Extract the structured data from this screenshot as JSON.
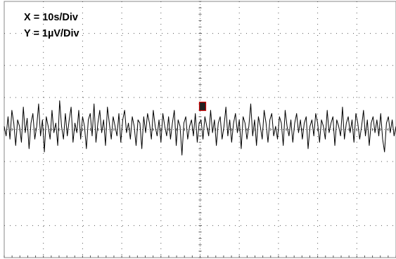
{
  "scale": {
    "x_label": "X = 10s/Div",
    "y_label": "Y = 1µV/Div"
  },
  "colors": {
    "trace": "#000000",
    "grid": "#555555",
    "marker_edge": "#cc0000",
    "marker_fill": "#222222"
  },
  "chart_data": {
    "type": "line",
    "title": "",
    "xlabel": "",
    "ylabel": "",
    "grid": "dotted",
    "divisions": {
      "x": 10,
      "y": 8
    },
    "xlim": [
      0,
      100
    ],
    "ylim": [
      -4,
      4
    ],
    "x_unit": "s",
    "y_unit": "µV",
    "series": [
      {
        "values": [
          0.1,
          -0.2,
          0.4,
          -0.3,
          0.6,
          0.2,
          -0.5,
          0.3,
          0.1,
          -0.4,
          0.7,
          -0.1,
          0.35,
          -0.6,
          0.2,
          0.5,
          -0.3,
          0.1,
          0.8,
          -0.2,
          0.3,
          -0.7,
          0.4,
          0.1,
          -0.3,
          0.6,
          -0.1,
          0.2,
          -0.5,
          0.9,
          0.1,
          -0.3,
          0.5,
          -0.2,
          0.3,
          0.7,
          -0.4,
          0.2,
          -0.1,
          0.6,
          -0.3,
          0.4,
          0.1,
          -0.6,
          0.3,
          0.5,
          -0.2,
          0.8,
          -0.4,
          0.2,
          0.6,
          -0.1,
          0.3,
          -0.5,
          0.7,
          0.2,
          -0.3,
          0.4,
          0.1,
          -0.2,
          0.5,
          -0.4,
          0.3,
          0.6,
          -0.1,
          0.2,
          -0.3,
          0.4,
          0.1,
          -0.5,
          0.3,
          0.2,
          -0.6,
          0.4,
          -0.1,
          0.5,
          0.2,
          -0.3,
          0.6,
          0.1,
          -0.2,
          0.3,
          -0.4,
          0.5,
          0.1,
          -0.2,
          0.4,
          -0.3,
          0.2,
          0.6,
          -0.5,
          0.3,
          0.1,
          -0.8,
          0.2,
          0.4,
          -0.3,
          0.1,
          0.3,
          -0.2,
          0.5,
          -0.4,
          0.2,
          0.3,
          -0.3,
          0.4,
          0.1,
          -0.2,
          0.6,
          -0.1,
          0.3,
          -0.5,
          0.2,
          0.4,
          -0.3,
          0.1,
          0.7,
          -0.2,
          0.3,
          -0.4,
          0.2,
          0.5,
          -0.1,
          0.3,
          -0.6,
          0.4,
          0.2,
          -0.3,
          0.1,
          0.8,
          -0.2,
          0.3,
          -0.5,
          0.4,
          0.1,
          -0.3,
          0.6,
          0.2,
          -0.4,
          0.3,
          0.5,
          -0.2,
          0.1,
          -0.3,
          0.4,
          0.2,
          -0.5,
          0.6,
          0.1,
          -0.2,
          0.3,
          -0.4,
          0.2,
          0.5,
          -0.1,
          0.3,
          -0.3,
          0.2,
          0.4,
          -0.6,
          0.1,
          0.3,
          -0.2,
          0.5,
          0.2,
          -0.4,
          0.3,
          0.1,
          -0.3,
          0.6,
          -0.1,
          0.2,
          0.4,
          -0.5,
          0.3,
          0.1,
          -0.2,
          0.7,
          -0.3,
          0.2,
          0.4,
          -0.1,
          0.3,
          -0.4,
          0.5,
          0.2,
          -0.3,
          0.1,
          0.6,
          -0.2,
          0.3,
          -0.5,
          0.2,
          0.4,
          -0.1,
          0.3,
          -0.2,
          0.5,
          -0.3,
          -0.7,
          0.2,
          0.4,
          -0.1,
          0.3,
          -0.2,
          0.1
        ]
      }
    ]
  }
}
